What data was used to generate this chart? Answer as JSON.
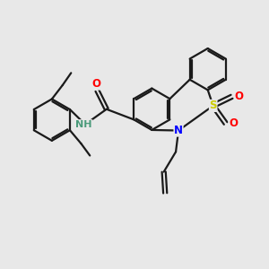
{
  "bg_color": "#e8e8e8",
  "bond_color": "#1a1a1a",
  "N_color": "#0000ff",
  "O_color": "#ff0000",
  "S_color": "#cccc00",
  "NH_color": "#4a9a7a",
  "line_width": 1.6,
  "figsize": [
    3.0,
    3.0
  ],
  "dpi": 100,
  "xlim": [
    0,
    10
  ],
  "ylim": [
    0,
    10
  ]
}
